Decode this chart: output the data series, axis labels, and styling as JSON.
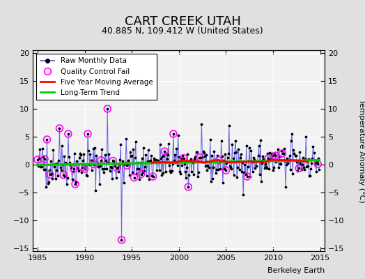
{
  "title": "CART CREEK UTAH",
  "subtitle": "40.885 N, 109.412 W (United States)",
  "ylabel_right": "Temperature Anomaly (°C)",
  "watermark": "Berkeley Earth",
  "xlim": [
    1984.5,
    2015.5
  ],
  "ylim": [
    -15.5,
    20.5
  ],
  "yticks": [
    -15,
    -10,
    -5,
    0,
    5,
    10,
    15,
    20
  ],
  "xticks": [
    1985,
    1990,
    1995,
    2000,
    2005,
    2010,
    2015
  ],
  "bg_color": "#e0e0e0",
  "plot_bg": "#f2f2f2",
  "line_color": "#5555dd",
  "qc_color": "magenta",
  "trend_color": "#00cc00",
  "moving_avg_color": "red",
  "seed": 42,
  "spike_up_year": 1992.42,
  "spike_up_val": 10.0,
  "spike_down_year": 1993.92,
  "spike_down_val": -13.5,
  "noise_scale": 1.8,
  "trend_slope": 0.02,
  "ma_start": 1997.0,
  "ma_end": 2013.8
}
